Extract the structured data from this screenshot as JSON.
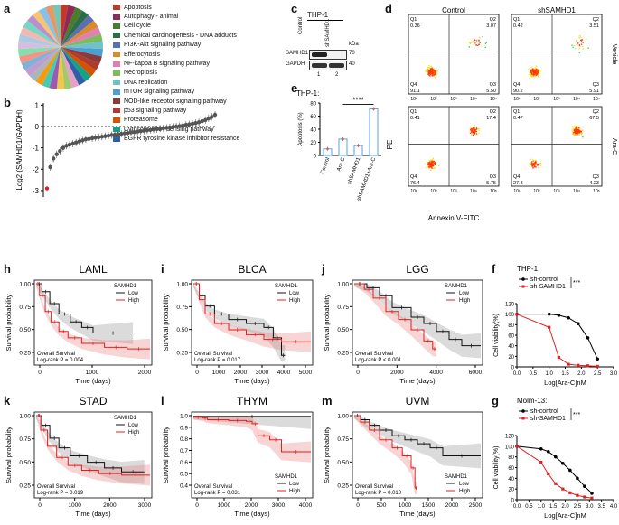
{
  "panel_letters": {
    "a": "a",
    "b": "b",
    "c": "c",
    "d": "d",
    "e": "e",
    "f": "f",
    "g": "g",
    "h": "h",
    "i": "i",
    "j": "j",
    "k": "k",
    "l": "l",
    "m": "m"
  },
  "panel_a": {
    "pathways": [
      {
        "label": "Apoptosis",
        "color": "#c0392b"
      },
      {
        "label": "Autophagy - animal",
        "color": "#8e2a55"
      },
      {
        "label": "Cell cycle",
        "color": "#4a7c2f"
      },
      {
        "label": "Chemical carcinogenesis - DNA adducts",
        "color": "#2c6e49"
      },
      {
        "label": "PI3K-Akt signaling pathway",
        "color": "#5b6fb5"
      },
      {
        "label": "Efferocytosis",
        "color": "#d98a2b"
      },
      {
        "label": "NF-kappa B signaling pathway",
        "color": "#e07fb2"
      },
      {
        "label": "Necroptosis",
        "color": "#7dbb5d"
      },
      {
        "label": "DNA replication",
        "color": "#6fc3c8"
      },
      {
        "label": "mTOR signaling pathway",
        "color": "#4b9fd5"
      },
      {
        "label": "NOD-like receptor signaling pathway",
        "color": "#8b3a3a"
      },
      {
        "label": "p53 signaling pathway",
        "color": "#b03a2e"
      },
      {
        "label": "Proteasome",
        "color": "#d35400"
      },
      {
        "label": "Cytosolic DNA-sensing pathway",
        "color": "#16a085"
      },
      {
        "label": "EGFR tyrosine kinase inhibitor resistance",
        "color": "#2e5fa8"
      }
    ]
  },
  "panel_b": {
    "ylabel": "Log2 (SAMHD1/GAPDH)",
    "yticks": [
      "1",
      "0",
      "-1",
      "-2",
      "-3"
    ],
    "chart_data": {
      "type": "scatter",
      "title": "",
      "ylabel": "Log2 (SAMHD1/GAPDH)",
      "ylim": [
        -3.3,
        1.1
      ],
      "note": "sorted expression across cell lines; lowest value highlighted red at -2.9",
      "values": [
        -2.9,
        -1.9,
        -1.5,
        -1.3,
        -1.15,
        -1.0,
        -0.9,
        -0.85,
        -0.8,
        -0.75,
        -0.7,
        -0.65,
        -0.6,
        -0.58,
        -0.55,
        -0.52,
        -0.5,
        -0.48,
        -0.45,
        -0.43,
        -0.4,
        -0.38,
        -0.36,
        -0.34,
        -0.32,
        -0.3,
        -0.28,
        -0.26,
        -0.24,
        -0.22,
        -0.2,
        -0.18,
        -0.16,
        -0.14,
        -0.12,
        -0.1,
        -0.08,
        -0.06,
        -0.04,
        -0.02,
        0.0,
        0.02,
        0.05,
        0.08,
        0.1,
        0.13,
        0.16,
        0.2,
        0.25,
        0.3,
        0.38,
        0.45,
        0.55
      ]
    }
  },
  "panel_c": {
    "title": "THP-1",
    "lanes": [
      "Control",
      "shSAMHD1"
    ],
    "lane_numbers": [
      "1",
      "2"
    ],
    "proteins": [
      "SAMHD1",
      "GAPDH"
    ],
    "kda_label": "kDa",
    "kda": [
      "70",
      "40"
    ]
  },
  "panel_e": {
    "title": "THP-1:",
    "ylabel": "Apoptosis (%)",
    "significance": "****",
    "yticks": [
      "80",
      "60",
      "40",
      "20",
      "0"
    ],
    "chart_data": {
      "type": "bar",
      "categories": [
        "Control",
        "Ara-C",
        "shSAMHD1",
        "shSAMHD1+Ara-C"
      ],
      "values": [
        10,
        25,
        15,
        71
      ],
      "ylim": [
        0,
        80
      ],
      "ylabel": "Apoptosis (%)",
      "title": "THP-1:"
    }
  },
  "panel_d": {
    "col_titles": [
      "Control",
      "shSAMHD1"
    ],
    "row_labels": [
      "Vehicle",
      "Ara-C"
    ],
    "xlabel": "Annexin V-FITC",
    "ylabel": "PE",
    "ticks": [
      "10¹",
      "10²",
      "10³",
      "10⁴",
      "10⁵"
    ],
    "plots": [
      {
        "q1": "Q1\n0.36",
        "q2": "Q2\n3.07",
        "q3": "Q3\n5.50",
        "q4": "Q4\n91.1"
      },
      {
        "q1": "Q1\n0.42",
        "q2": "Q2\n3.51",
        "q3": "Q3\n5.91",
        "q4": "Q4\n90.2"
      },
      {
        "q1": "Q1\n0.41",
        "q2": "Q2\n17.4",
        "q3": "Q3\n5.75",
        "q4": "Q4\n76.4"
      },
      {
        "q1": "Q1\n0.47",
        "q2": "Q2\n67.5",
        "q3": "Q3\n4.23",
        "q4": "Q4\n27.8"
      }
    ]
  },
  "km": {
    "ylabel": "Survival probability",
    "xlabel": "Time (days)",
    "legend_title": "SAMHD1",
    "low": "Low",
    "high": "High",
    "overall": "Overall Survival",
    "plots": [
      {
        "id": "h",
        "title": "LAML",
        "logrank": "Log-rank  P = 0.004",
        "xticks": [
          "0",
          "1000",
          "2000"
        ],
        "yticks": [
          "1.00",
          "0.75",
          "0.50",
          "0.25"
        ]
      },
      {
        "id": "i",
        "title": "BLCA",
        "logrank": "Log-rank  P = 0.017",
        "xticks": [
          "0",
          "1000",
          "2000",
          "3000",
          "4000",
          "5000"
        ],
        "yticks": [
          "1.00",
          "0.75",
          "0.50",
          "0.25"
        ]
      },
      {
        "id": "j",
        "title": "LGG",
        "logrank": "Log-rank  P < 0.001",
        "xticks": [
          "0",
          "2000",
          "4000",
          "6000"
        ],
        "yticks": [
          "1.00",
          "0.75",
          "0.50",
          "0.25"
        ]
      },
      {
        "id": "k",
        "title": "STAD",
        "logrank": "Log-rank  P = 0.019",
        "xticks": [
          "0",
          "1000",
          "2000",
          "3000"
        ],
        "yticks": [
          "1.00",
          "0.75",
          "0.50",
          "0.25"
        ]
      },
      {
        "id": "l",
        "title": "THYM",
        "logrank": "Log-rank  P = 0.031",
        "xticks": [
          "0",
          "1000",
          "2000",
          "3000",
          "4000"
        ],
        "yticks": [
          "1.0",
          "0.9",
          "0.8",
          "0.7",
          "0.6",
          "0.5",
          "0.4"
        ]
      },
      {
        "id": "m",
        "title": "UVM",
        "logrank": "Log-rank  P = 0.010",
        "xticks": [
          "0",
          "500",
          "1000",
          "1500",
          "2000",
          "2500"
        ],
        "yticks": [
          "1.00",
          "0.75",
          "0.50",
          "0.25"
        ]
      }
    ]
  },
  "viability": [
    {
      "id": "f",
      "title": "THP-1:",
      "ctrl": "sh-control",
      "sh": "sh-SAMHD1",
      "sig": "***",
      "ylabel": "Cell viability(%)",
      "xlabel": "Log[Ara-C]nM",
      "xticks": [
        "0.0",
        "0.5",
        "1.0",
        "1.5",
        "2.0",
        "2.5",
        "3.0"
      ],
      "yticks": [
        "0",
        "20",
        "40",
        "60",
        "80",
        "100",
        "120"
      ],
      "chart_data": {
        "type": "line",
        "x": [
          0,
          1.0,
          1.3,
          1.6,
          1.9,
          2.2,
          2.5
        ],
        "series": [
          {
            "name": "sh-control",
            "values": [
              100,
              100,
              98,
              93,
              82,
              55,
              15
            ]
          },
          {
            "name": "sh-SAMHD1",
            "values": [
              100,
              75,
              18,
              5,
              3,
              2,
              1
            ]
          }
        ],
        "xlim": [
          0,
          3
        ],
        "ylim": [
          0,
          120
        ]
      }
    },
    {
      "id": "g",
      "title": "Molm-13:",
      "ctrl": "sh-control",
      "sh": "sh-SAMHD1",
      "sig": "***",
      "ylabel": "Cell viability(%)",
      "xlabel": "Log[Ara-C]nM",
      "xticks": [
        "0.0",
        "0.5",
        "1.0",
        "1.5",
        "2.0",
        "2.5",
        "3.0",
        "3.5",
        "4.0"
      ],
      "yticks": [
        "0",
        "20",
        "40",
        "60",
        "80",
        "100",
        "120"
      ],
      "chart_data": {
        "type": "line",
        "x": [
          0,
          1.0,
          1.3,
          1.6,
          1.9,
          2.2,
          2.5,
          2.8,
          3.1
        ],
        "series": [
          {
            "name": "sh-control",
            "values": [
              100,
              95,
              90,
              80,
              68,
              55,
              40,
              25,
              12
            ]
          },
          {
            "name": "sh-SAMHD1",
            "values": [
              100,
              70,
              48,
              30,
              20,
              13,
              8,
              5,
              3
            ]
          }
        ],
        "xlim": [
          0,
          4
        ],
        "ylim": [
          0,
          120
        ]
      }
    }
  ]
}
